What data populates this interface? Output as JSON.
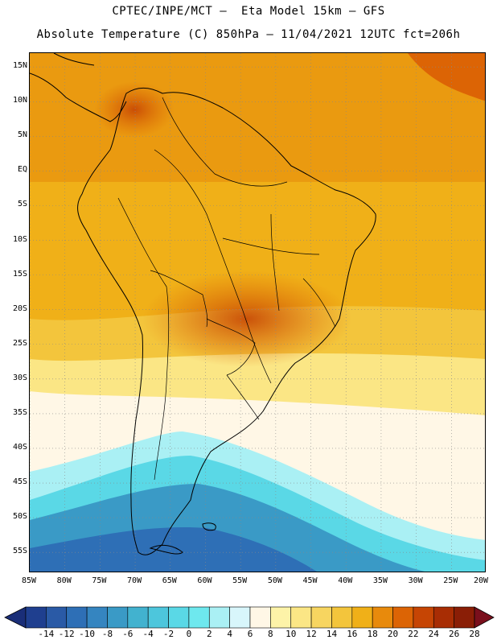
{
  "header": {
    "line1": "CPTEC/INPE/MCT —  Eta Model 15km — GFS",
    "line2": "Absolute Temperature (C) 850hPa — 11/04/2021 12UTC fct=206h"
  },
  "map": {
    "lat_labels": [
      "15N",
      "10N",
      "5N",
      "EQ",
      "5S",
      "10S",
      "15S",
      "20S",
      "25S",
      "30S",
      "35S",
      "40S",
      "45S",
      "50S",
      "55S"
    ],
    "lon_labels": [
      "85W",
      "80W",
      "75W",
      "70W",
      "65W",
      "60W",
      "55W",
      "50W",
      "45W",
      "40W",
      "35W",
      "30W",
      "25W",
      "20W"
    ],
    "lon_range": [
      -85,
      -20
    ],
    "lat_range": [
      -58,
      17
    ]
  },
  "colorbar": {
    "labels": [
      "-14",
      "-12",
      "-10",
      "-8",
      "-6",
      "-4",
      "-2",
      "0",
      "2",
      "4",
      "6",
      "8",
      "10",
      "12",
      "14",
      "16",
      "18",
      "20",
      "22",
      "24",
      "26",
      "28"
    ],
    "colors": [
      "#1f3f8f",
      "#2a5aa6",
      "#2e6fb6",
      "#3585c0",
      "#3a9ac6",
      "#42b2cf",
      "#4dc6dc",
      "#5ad8e6",
      "#6ee8ee",
      "#aaf0f4",
      "#d8f6fb",
      "#fff7e6",
      "#fdf3a8",
      "#fbe685",
      "#f7d560",
      "#f3c53c",
      "#f0b018",
      "#e88a0c",
      "#dc6405",
      "#c64504",
      "#a82d04",
      "#8a1e06"
    ],
    "low_color": "#1a2e78",
    "high_color": "#7a0f1c"
  }
}
